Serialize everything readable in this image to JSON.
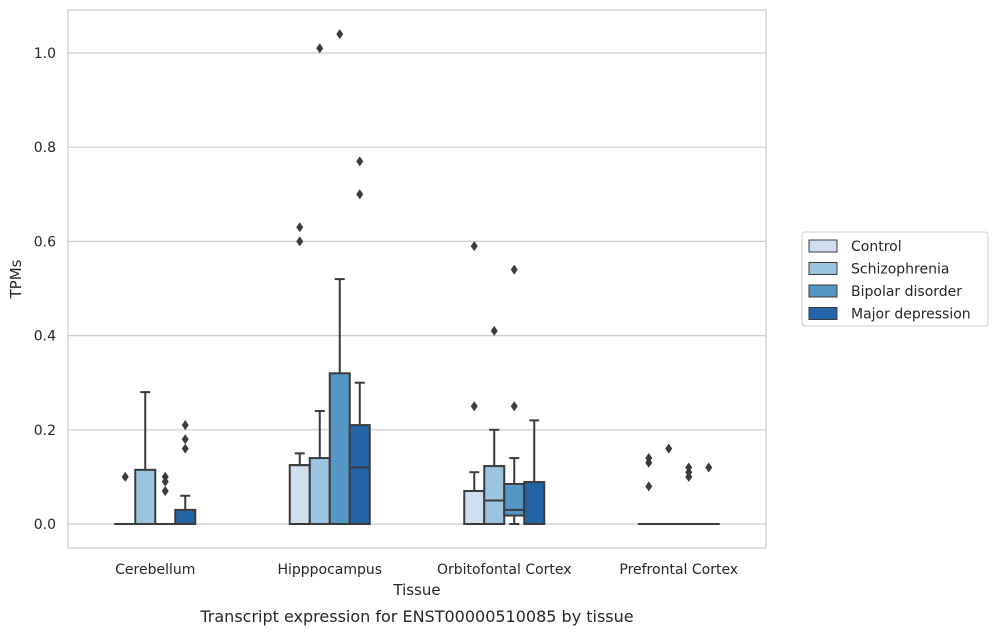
{
  "chart_data": {
    "type": "box",
    "xlabel": "Tissue",
    "ylabel": "TPMs",
    "caption": "Transcript expression for ENST00000510085 by tissue",
    "ylim": [
      -0.05,
      1.09
    ],
    "yticks": [
      0.0,
      0.2,
      0.4,
      0.6,
      0.8,
      1.0
    ],
    "ytick_labels": [
      "0.0",
      "0.2",
      "0.4",
      "0.6",
      "0.8",
      "1.0"
    ],
    "grid": "horizontal",
    "legend_position": "right-outside",
    "categories": [
      "Cerebellum",
      "Hipppocampus",
      "Orbitofontal Cortex",
      "Prefrontal Cortex"
    ],
    "series": [
      {
        "name": "Control",
        "color": "#d0dff0",
        "boxes": [
          {
            "q1": 0.0,
            "median": 0.0,
            "q3": 0.0,
            "whisker_low": 0.0,
            "whisker_high": 0.0,
            "outliers": [
              0.1
            ]
          },
          {
            "q1": 0.0,
            "median": 0.125,
            "q3": 0.125,
            "whisker_low": 0.0,
            "whisker_high": 0.15,
            "outliers": [
              0.6,
              0.63
            ]
          },
          {
            "q1": 0.0,
            "median": 0.07,
            "q3": 0.07,
            "whisker_low": 0.0,
            "whisker_high": 0.11,
            "outliers": [
              0.25,
              0.59
            ]
          },
          {
            "q1": 0.0,
            "median": 0.0,
            "q3": 0.0,
            "whisker_low": 0.0,
            "whisker_high": 0.0,
            "outliers": [
              0.08,
              0.13,
              0.14
            ]
          }
        ]
      },
      {
        "name": "Schizophrenia",
        "color": "#9ac4e0",
        "boxes": [
          {
            "q1": 0.0,
            "median": 0.0,
            "q3": 0.115,
            "whisker_low": 0.0,
            "whisker_high": 0.28,
            "outliers": []
          },
          {
            "q1": 0.0,
            "median": 0.0,
            "q3": 0.14,
            "whisker_low": 0.0,
            "whisker_high": 0.24,
            "outliers": [
              1.01
            ]
          },
          {
            "q1": 0.0,
            "median": 0.05,
            "q3": 0.123,
            "whisker_low": 0.0,
            "whisker_high": 0.2,
            "outliers": [
              0.41
            ]
          },
          {
            "q1": 0.0,
            "median": 0.0,
            "q3": 0.0,
            "whisker_low": 0.0,
            "whisker_high": 0.0,
            "outliers": [
              0.16
            ]
          }
        ]
      },
      {
        "name": "Bipolar disorder",
        "color": "#5496c6",
        "boxes": [
          {
            "q1": 0.0,
            "median": 0.0,
            "q3": 0.0,
            "whisker_low": 0.0,
            "whisker_high": 0.0,
            "outliers": [
              0.07,
              0.09,
              0.1
            ]
          },
          {
            "q1": 0.0,
            "median": 0.0,
            "q3": 0.32,
            "whisker_low": 0.0,
            "whisker_high": 0.52,
            "outliers": [
              1.04
            ]
          },
          {
            "q1": 0.018,
            "median": 0.03,
            "q3": 0.085,
            "whisker_low": 0.0,
            "whisker_high": 0.14,
            "outliers": [
              0.25,
              0.54
            ]
          },
          {
            "q1": 0.0,
            "median": 0.0,
            "q3": 0.0,
            "whisker_low": 0.0,
            "whisker_high": 0.0,
            "outliers": [
              0.1,
              0.11,
              0.12
            ]
          }
        ]
      },
      {
        "name": "Major depression",
        "color": "#2364a6",
        "boxes": [
          {
            "q1": 0.0,
            "median": 0.0,
            "q3": 0.03,
            "whisker_low": 0.0,
            "whisker_high": 0.06,
            "outliers": [
              0.16,
              0.18,
              0.21
            ]
          },
          {
            "q1": 0.0,
            "median": 0.12,
            "q3": 0.21,
            "whisker_low": 0.0,
            "whisker_high": 0.3,
            "outliers": [
              0.7,
              0.77
            ]
          },
          {
            "q1": 0.0,
            "median": 0.0,
            "q3": 0.089,
            "whisker_low": 0.0,
            "whisker_high": 0.22,
            "outliers": []
          },
          {
            "q1": 0.0,
            "median": 0.0,
            "q3": 0.0,
            "whisker_low": 0.0,
            "whisker_high": 0.0,
            "outliers": [
              0.12
            ]
          }
        ]
      }
    ]
  }
}
